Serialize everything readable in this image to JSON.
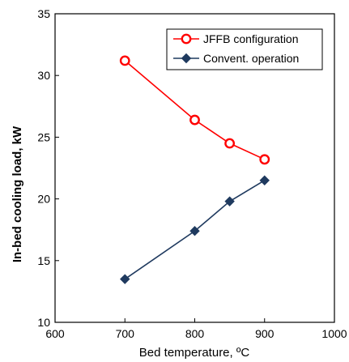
{
  "chart_data": {
    "type": "line",
    "xlabel": "Bed temperature, ºC",
    "ylabel": "In-bed cooling load, kW",
    "xlim": [
      600,
      1000
    ],
    "ylim": [
      10,
      35
    ],
    "xticks": [
      600,
      700,
      800,
      900,
      1000
    ],
    "yticks": [
      10,
      15,
      20,
      25,
      30,
      35
    ],
    "grid": false,
    "legend_position": "top-right",
    "series": [
      {
        "name": "JFFB configuration",
        "color": "#ff0000",
        "marker": "open-circle",
        "x": [
          700,
          800,
          850,
          900
        ],
        "y": [
          31.2,
          26.4,
          24.5,
          23.2
        ]
      },
      {
        "name": "Convent. operation",
        "color": "#1f3a5f",
        "marker": "filled-diamond",
        "x": [
          700,
          800,
          850,
          900
        ],
        "y": [
          13.5,
          17.4,
          19.8,
          21.5
        ]
      }
    ]
  }
}
